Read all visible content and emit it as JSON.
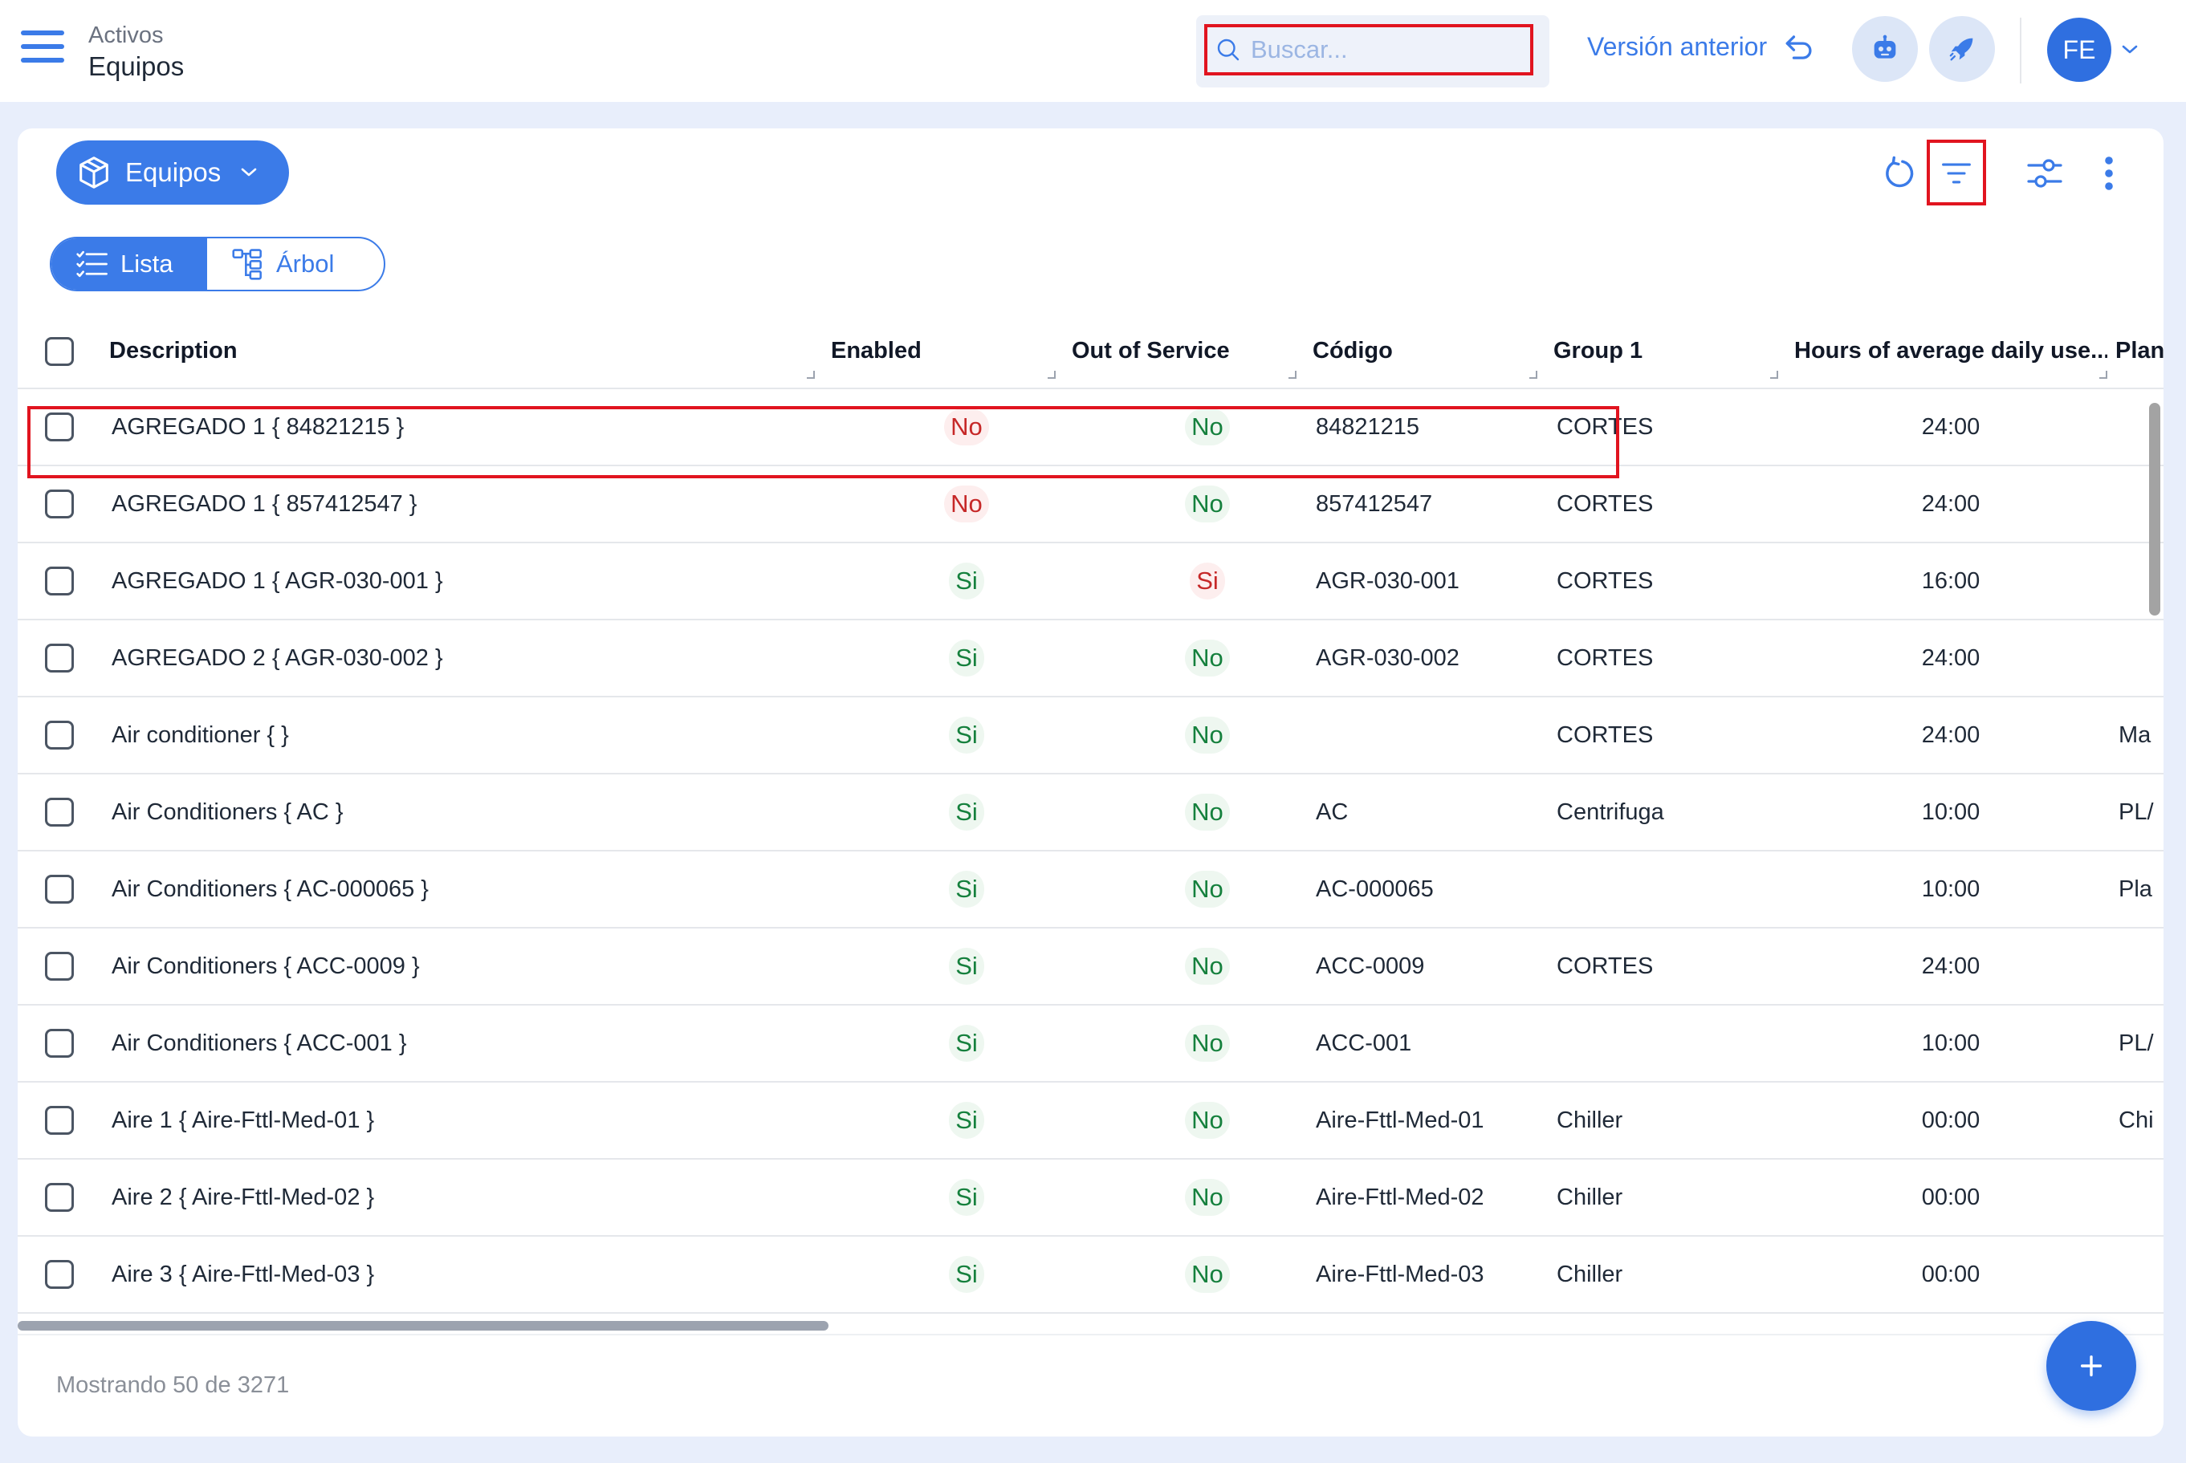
{
  "breadcrumb": {
    "parent": "Activos",
    "current": "Equipos"
  },
  "search": {
    "placeholder": "Buscar..."
  },
  "header": {
    "version_label": "Versión anterior",
    "avatar_initials": "FE"
  },
  "toolbar": {
    "module_label": "Equipos"
  },
  "view_toggle": {
    "list_label": "Lista",
    "tree_label": "Árbol"
  },
  "table": {
    "columns": [
      "Description",
      "Enabled",
      "Out of Service",
      "Código",
      "Group 1",
      "Hours of average daily use...",
      "Plan"
    ],
    "rows": [
      {
        "description": "AGREGADO 1 { 84821215 }",
        "enabled": "No",
        "out_of_service": "No",
        "codigo": "84821215",
        "group1": "CORTES",
        "hours": "24:00",
        "plan": ""
      },
      {
        "description": "AGREGADO 1 { 857412547 }",
        "enabled": "No",
        "out_of_service": "No",
        "codigo": "857412547",
        "group1": "CORTES",
        "hours": "24:00",
        "plan": ""
      },
      {
        "description": "AGREGADO 1 { AGR-030-001 }",
        "enabled": "Si",
        "out_of_service": "Si",
        "codigo": "AGR-030-001",
        "group1": "CORTES",
        "hours": "16:00",
        "plan": ""
      },
      {
        "description": "AGREGADO 2 { AGR-030-002 }",
        "enabled": "Si",
        "out_of_service": "No",
        "codigo": "AGR-030-002",
        "group1": "CORTES",
        "hours": "24:00",
        "plan": ""
      },
      {
        "description": "Air conditioner { }",
        "enabled": "Si",
        "out_of_service": "No",
        "codigo": "",
        "group1": "CORTES",
        "hours": "24:00",
        "plan": "Ma"
      },
      {
        "description": "Air Conditioners { AC }",
        "enabled": "Si",
        "out_of_service": "No",
        "codigo": "AC",
        "group1": "Centrifuga",
        "hours": "10:00",
        "plan": "PL/"
      },
      {
        "description": "Air Conditioners { AC-000065 }",
        "enabled": "Si",
        "out_of_service": "No",
        "codigo": "AC-000065",
        "group1": "",
        "hours": "10:00",
        "plan": "Pla"
      },
      {
        "description": "Air Conditioners { ACC-0009 }",
        "enabled": "Si",
        "out_of_service": "No",
        "codigo": "ACC-0009",
        "group1": "CORTES",
        "hours": "24:00",
        "plan": ""
      },
      {
        "description": "Air Conditioners { ACC-001 }",
        "enabled": "Si",
        "out_of_service": "No",
        "codigo": "ACC-001",
        "group1": "",
        "hours": "10:00",
        "plan": "PL/"
      },
      {
        "description": "Aire 1 { Aire-Fttl-Med-01 }",
        "enabled": "Si",
        "out_of_service": "No",
        "codigo": "Aire-Fttl-Med-01",
        "group1": "Chiller",
        "hours": "00:00",
        "plan": "Chi"
      },
      {
        "description": "Aire 2 { Aire-Fttl-Med-02 }",
        "enabled": "Si",
        "out_of_service": "No",
        "codigo": "Aire-Fttl-Med-02",
        "group1": "Chiller",
        "hours": "00:00",
        "plan": ""
      },
      {
        "description": "Aire 3 { Aire-Fttl-Med-03 }",
        "enabled": "Si",
        "out_of_service": "No",
        "codigo": "Aire-Fttl-Med-03",
        "group1": "Chiller",
        "hours": "00:00",
        "plan": ""
      }
    ]
  },
  "footer": {
    "status": "Mostrando 50 de 3271"
  },
  "colors": {
    "accent": "#3b7be8",
    "highlight_outline": "#e1141f",
    "yes_green": "#15803d",
    "no_red": "#c62828"
  },
  "icons": [
    "hamburger-menu-icon",
    "search-icon",
    "undo-arrow-icon",
    "robot-icon",
    "rocket-icon",
    "chevron-down-icon",
    "cube-icon",
    "refresh-icon",
    "filter-icon",
    "sliders-icon",
    "more-vertical-icon",
    "list-icon",
    "tree-icon",
    "plus-icon"
  ]
}
